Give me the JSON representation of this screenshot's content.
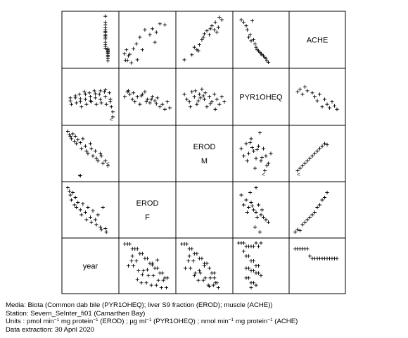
{
  "chart_data": {
    "type": "scatter",
    "variables": [
      "year",
      "EROD F",
      "EROD M",
      "PYR1OHEQ",
      "ACHE"
    ],
    "diagonal_labels": [
      [
        "ACHE"
      ],
      [
        "PYR1OHEQ"
      ],
      [
        "EROD",
        "M"
      ],
      [
        "EROD",
        "F"
      ],
      [
        "year"
      ]
    ],
    "marker": "+",
    "panels": [
      {
        "row": 0,
        "col": 0,
        "x": [
          0.8,
          0.8,
          0.8,
          0.8,
          0.8,
          0.8,
          0.8,
          0.8,
          0.8,
          0.8,
          0.8,
          0.8,
          0.8,
          0.8,
          0.8,
          0.85,
          0.85,
          0.85,
          0.85,
          0.85,
          0.85,
          0.85,
          0.85,
          0.85,
          0.85
        ],
        "y": [
          0.97,
          0.85,
          0.8,
          0.74,
          0.7,
          0.67,
          0.64,
          0.6,
          0.58,
          0.55,
          0.52,
          0.45,
          0.4,
          0.37,
          0.33,
          0.32,
          0.3,
          0.28,
          0.26,
          0.24,
          0.22,
          0.19,
          0.16,
          0.12,
          0.08
        ]
      },
      {
        "row": 0,
        "col": 1,
        "x": [
          0.04,
          0.06,
          0.08,
          0.1,
          0.12,
          0.15,
          0.18,
          0.22,
          0.28,
          0.3,
          0.35,
          0.4,
          0.45,
          0.55,
          0.6,
          0.65,
          0.68,
          0.75,
          0.85
        ],
        "y": [
          0.22,
          0.09,
          0.3,
          0.09,
          0.18,
          0.21,
          0.04,
          0.32,
          0.42,
          0.1,
          0.55,
          0.3,
          0.7,
          0.6,
          0.72,
          0.45,
          0.65,
          0.82,
          0.8
        ]
      },
      {
        "row": 0,
        "col": 2,
        "x": [
          0.1,
          0.25,
          0.3,
          0.35,
          0.38,
          0.4,
          0.45,
          0.48,
          0.5,
          0.55,
          0.6,
          0.62,
          0.65,
          0.7,
          0.72,
          0.75,
          0.78,
          0.8,
          0.85
        ],
        "y": [
          0.1,
          0.2,
          0.35,
          0.3,
          0.28,
          0.4,
          0.5,
          0.55,
          0.62,
          0.68,
          0.6,
          0.72,
          0.78,
          0.7,
          0.85,
          0.65,
          0.75,
          0.95,
          0.9
        ]
      },
      {
        "row": 0,
        "col": 3,
        "x": [
          0.1,
          0.15,
          0.2,
          0.22,
          0.25,
          0.28,
          0.3,
          0.32,
          0.35,
          0.38,
          0.4,
          0.42,
          0.45,
          0.48,
          0.5,
          0.52,
          0.55,
          0.58,
          0.6,
          0.62,
          0.65
        ],
        "y": [
          0.9,
          0.85,
          0.78,
          0.7,
          0.55,
          0.6,
          0.48,
          0.88,
          0.5,
          0.42,
          0.35,
          0.3,
          0.28,
          0.25,
          0.22,
          0.2,
          0.18,
          0.15,
          0.12,
          0.08,
          0.05
        ]
      },
      {
        "row": 1,
        "col": 0,
        "x": [
          0.1,
          0.12,
          0.2,
          0.22,
          0.28,
          0.3,
          0.32,
          0.38,
          0.4,
          0.42,
          0.48,
          0.5,
          0.52,
          0.58,
          0.6,
          0.62,
          0.68,
          0.7,
          0.72,
          0.78,
          0.8,
          0.82,
          0.88,
          0.9,
          0.92,
          0.95,
          0.1,
          0.2,
          0.3,
          0.4,
          0.5,
          0.6,
          0.7,
          0.8,
          0.9,
          0.95
        ],
        "y": [
          0.42,
          0.35,
          0.48,
          0.38,
          0.55,
          0.4,
          0.3,
          0.6,
          0.45,
          0.35,
          0.58,
          0.5,
          0.4,
          0.62,
          0.48,
          0.35,
          0.55,
          0.45,
          0.38,
          0.6,
          0.5,
          0.35,
          0.58,
          0.45,
          0.3,
          0.1,
          0.48,
          0.52,
          0.46,
          0.55,
          0.42,
          0.56,
          0.62,
          0.64,
          0.4,
          0.2
        ]
      },
      {
        "row": 1,
        "col": 1,
        "x": [
          0.05,
          0.1,
          0.15,
          0.2,
          0.25,
          0.3,
          0.35,
          0.4,
          0.45,
          0.5,
          0.55,
          0.6,
          0.65,
          0.7,
          0.75,
          0.8,
          0.85,
          0.9,
          0.95,
          0.12,
          0.22,
          0.38,
          0.48,
          0.58,
          0.68
        ],
        "y": [
          0.5,
          0.6,
          0.55,
          0.45,
          0.4,
          0.5,
          0.35,
          0.55,
          0.6,
          0.45,
          0.38,
          0.5,
          0.42,
          0.48,
          0.3,
          0.35,
          0.25,
          0.4,
          0.28,
          0.62,
          0.58,
          0.52,
          0.4,
          0.45,
          0.36
        ]
      },
      {
        "row": 1,
        "col": 2,
        "x": [
          0.1,
          0.15,
          0.2,
          0.25,
          0.3,
          0.35,
          0.4,
          0.45,
          0.5,
          0.55,
          0.6,
          0.65,
          0.7,
          0.75,
          0.8,
          0.85,
          0.9,
          0.22,
          0.32,
          0.42,
          0.52,
          0.62,
          0.72,
          0.38,
          0.48
        ],
        "y": [
          0.55,
          0.45,
          0.4,
          0.6,
          0.5,
          0.35,
          0.55,
          0.65,
          0.45,
          0.3,
          0.5,
          0.4,
          0.55,
          0.45,
          0.35,
          0.5,
          0.4,
          0.3,
          0.62,
          0.48,
          0.58,
          0.36,
          0.25,
          0.42,
          0.52
        ]
      },
      {
        "row": 1,
        "col": 4,
        "x": [
          0.1,
          0.15,
          0.2,
          0.25,
          0.3,
          0.4,
          0.45,
          0.5,
          0.55,
          0.6,
          0.65,
          0.7,
          0.75,
          0.8,
          0.85,
          0.9
        ],
        "y": [
          0.6,
          0.65,
          0.55,
          0.7,
          0.62,
          0.58,
          0.5,
          0.42,
          0.55,
          0.3,
          0.45,
          0.35,
          0.28,
          0.4,
          0.32,
          0.25
        ]
      },
      {
        "row": 2,
        "col": 0,
        "x": [
          0.05,
          0.08,
          0.1,
          0.12,
          0.15,
          0.18,
          0.2,
          0.22,
          0.25,
          0.3,
          0.32,
          0.35,
          0.4,
          0.42,
          0.45,
          0.5,
          0.52,
          0.55,
          0.6,
          0.62,
          0.65,
          0.7,
          0.72,
          0.75,
          0.8,
          0.85,
          0.3
        ],
        "y": [
          0.95,
          0.88,
          0.85,
          0.8,
          0.9,
          0.75,
          0.85,
          0.7,
          0.78,
          0.72,
          0.6,
          0.8,
          0.65,
          0.55,
          0.5,
          0.7,
          0.6,
          0.45,
          0.55,
          0.4,
          0.35,
          0.5,
          0.45,
          0.3,
          0.35,
          0.25,
          0.05
        ]
      },
      {
        "row": 2,
        "col": 3,
        "x": [
          0.1,
          0.15,
          0.2,
          0.25,
          0.3,
          0.35,
          0.4,
          0.45,
          0.5,
          0.55,
          0.6,
          0.65,
          0.7,
          0.22,
          0.32,
          0.42,
          0.52,
          0.62,
          0.38,
          0.48,
          0.28,
          0.58
        ],
        "y": [
          0.6,
          0.45,
          0.7,
          0.5,
          0.8,
          0.55,
          0.4,
          0.65,
          0.35,
          0.6,
          0.45,
          0.3,
          0.5,
          0.35,
          0.62,
          0.58,
          0.42,
          0.25,
          0.2,
          0.92,
          0.72,
          0.15
        ]
      },
      {
        "row": 2,
        "col": 4,
        "x": [
          0.1,
          0.15,
          0.2,
          0.25,
          0.3,
          0.35,
          0.4,
          0.45,
          0.5,
          0.55,
          0.6,
          0.65,
          0.7
        ],
        "y": [
          0.15,
          0.2,
          0.25,
          0.3,
          0.35,
          0.4,
          0.45,
          0.5,
          0.55,
          0.6,
          0.65,
          0.7,
          0.68
        ]
      },
      {
        "row": 3,
        "col": 0,
        "x": [
          0.05,
          0.08,
          0.1,
          0.12,
          0.15,
          0.18,
          0.2,
          0.22,
          0.25,
          0.3,
          0.32,
          0.35,
          0.4,
          0.42,
          0.45,
          0.5,
          0.52,
          0.55,
          0.6,
          0.62,
          0.65,
          0.7,
          0.72,
          0.75,
          0.8,
          0.82
        ],
        "y": [
          0.95,
          0.88,
          0.8,
          0.7,
          0.85,
          0.6,
          0.75,
          0.55,
          0.65,
          0.5,
          0.4,
          0.62,
          0.45,
          0.3,
          0.55,
          0.35,
          0.25,
          0.48,
          0.3,
          0.2,
          0.4,
          0.15,
          0.1,
          0.55,
          0.12,
          0.05
        ]
      },
      {
        "row": 3,
        "col": 3,
        "x": [
          0.1,
          0.15,
          0.2,
          0.25,
          0.3,
          0.35,
          0.4,
          0.45,
          0.5,
          0.55,
          0.6,
          0.65,
          0.22,
          0.32,
          0.42,
          0.52,
          0.38,
          0.28,
          0.48,
          0.4
        ],
        "y": [
          0.8,
          0.6,
          0.7,
          0.55,
          0.65,
          0.5,
          0.45,
          0.6,
          0.4,
          0.35,
          0.3,
          0.25,
          0.45,
          0.58,
          0.35,
          0.5,
          0.15,
          0.85,
          0.05,
          0.95
        ]
      },
      {
        "row": 3,
        "col": 4,
        "x": [
          0.05,
          0.1,
          0.15,
          0.2,
          0.25,
          0.3,
          0.35,
          0.4,
          0.45,
          0.5,
          0.55,
          0.6,
          0.65,
          0.7
        ],
        "y": [
          0.05,
          0.1,
          0.08,
          0.2,
          0.25,
          0.3,
          0.35,
          0.4,
          0.45,
          0.55,
          0.6,
          0.7,
          0.75,
          0.85
        ]
      },
      {
        "row": 4,
        "col": 1,
        "x": [
          0.05,
          0.1,
          0.15,
          0.2,
          0.25,
          0.3,
          0.35,
          0.4,
          0.45,
          0.5,
          0.55,
          0.6,
          0.65,
          0.7,
          0.75,
          0.8,
          0.85,
          0.9,
          0.12,
          0.22,
          0.32,
          0.42,
          0.52,
          0.62,
          0.72,
          0.82,
          0.18,
          0.28,
          0.38,
          0.48,
          0.58,
          0.68,
          0.78,
          0.88,
          0.2,
          0.3,
          0.4,
          0.5,
          0.6,
          0.7
        ],
        "y": [
          0.95,
          0.95,
          0.95,
          0.85,
          0.85,
          0.85,
          0.75,
          0.75,
          0.65,
          0.65,
          0.55,
          0.55,
          0.45,
          0.45,
          0.35,
          0.35,
          0.25,
          0.25,
          0.5,
          0.5,
          0.4,
          0.4,
          0.3,
          0.3,
          0.2,
          0.2,
          0.6,
          0.6,
          0.15,
          0.15,
          0.1,
          0.1,
          0.05,
          0.05,
          0.7,
          0.22,
          0.32,
          0.42,
          0.52,
          0.62
        ]
      },
      {
        "row": 4,
        "col": 2,
        "x": [
          0.05,
          0.1,
          0.15,
          0.2,
          0.25,
          0.3,
          0.35,
          0.4,
          0.45,
          0.5,
          0.55,
          0.6,
          0.65,
          0.7,
          0.75,
          0.12,
          0.22,
          0.32,
          0.42,
          0.52,
          0.62,
          0.72,
          0.18,
          0.28,
          0.38,
          0.48,
          0.58,
          0.68,
          0.78,
          0.2,
          0.3,
          0.4,
          0.5,
          0.6,
          0.7
        ],
        "y": [
          0.95,
          0.95,
          0.95,
          0.85,
          0.85,
          0.75,
          0.75,
          0.65,
          0.65,
          0.55,
          0.55,
          0.45,
          0.35,
          0.25,
          0.15,
          0.45,
          0.45,
          0.35,
          0.35,
          0.25,
          0.25,
          0.15,
          0.6,
          0.6,
          0.2,
          0.2,
          0.1,
          0.1,
          0.05,
          0.7,
          0.3,
          0.4,
          0.5,
          0.08,
          0.35
        ]
      },
      {
        "row": 4,
        "col": 3,
        "x": [
          0.05,
          0.1,
          0.15,
          0.2,
          0.25,
          0.3,
          0.35,
          0.4,
          0.45,
          0.5,
          0.15,
          0.2,
          0.25,
          0.3,
          0.35,
          0.4,
          0.45,
          0.2,
          0.25,
          0.3,
          0.35,
          0.4,
          0.45,
          0.5,
          0.2,
          0.25,
          0.3,
          0.35,
          0.4,
          0.3
        ],
        "y": [
          0.97,
          0.97,
          0.97,
          0.9,
          0.9,
          0.9,
          0.9,
          0.97,
          0.9,
          0.97,
          0.8,
          0.7,
          0.7,
          0.6,
          0.6,
          0.5,
          0.5,
          0.45,
          0.45,
          0.4,
          0.4,
          0.35,
          0.35,
          0.3,
          0.25,
          0.25,
          0.15,
          0.15,
          0.1,
          0.05
        ]
      },
      {
        "row": 4,
        "col": 4,
        "x": [
          0.05,
          0.1,
          0.15,
          0.2,
          0.25,
          0.3,
          0.35,
          0.4,
          0.45,
          0.5,
          0.55,
          0.6,
          0.65,
          0.7,
          0.75,
          0.8,
          0.85,
          0.9
        ],
        "y": [
          0.85,
          0.85,
          0.85,
          0.85,
          0.85,
          0.85,
          0.7,
          0.65,
          0.65,
          0.65,
          0.65,
          0.65,
          0.65,
          0.65,
          0.65,
          0.65,
          0.65,
          0.65
        ]
      }
    ],
    "special_marks": [
      {
        "row": 1,
        "col": 0,
        "symbol": "<",
        "x": 0.92,
        "y": 0.05
      },
      {
        "row": 2,
        "col": 0,
        "symbol": "<",
        "x": 0.28,
        "y": 0.06
      },
      {
        "row": 2,
        "col": 0,
        "symbol": "<",
        "x": 0.85,
        "y": 0.3
      },
      {
        "row": 2,
        "col": 3,
        "symbol": "<",
        "x": 0.55,
        "y": 0.08
      },
      {
        "row": 2,
        "col": 4,
        "symbol": "<",
        "x": 0.12,
        "y": 0.08
      }
    ]
  },
  "caption": {
    "line1": "Media: Biota (Common dab bile (PYR1OHEQ); liver S9 fraction (EROD); muscle (ACHE))",
    "line2": "Station: Severn_SeInter_fi01 (Camarthen Bay)",
    "line3_a": "Units : pmol min",
    "line3_sup1": "−1",
    "line3_b": " mg protein",
    "line3_sup2": "−1",
    "line3_c": " (EROD) ;  µg ml",
    "line3_sup3": "−1",
    "line3_d": " (PYR1OHEQ) ;  nmol min",
    "line3_sup4": "−1",
    "line3_e": " mg protein",
    "line3_sup5": "−1",
    "line3_f": " (ACHE)",
    "line4": "Data extraction: 30 April 2020"
  }
}
